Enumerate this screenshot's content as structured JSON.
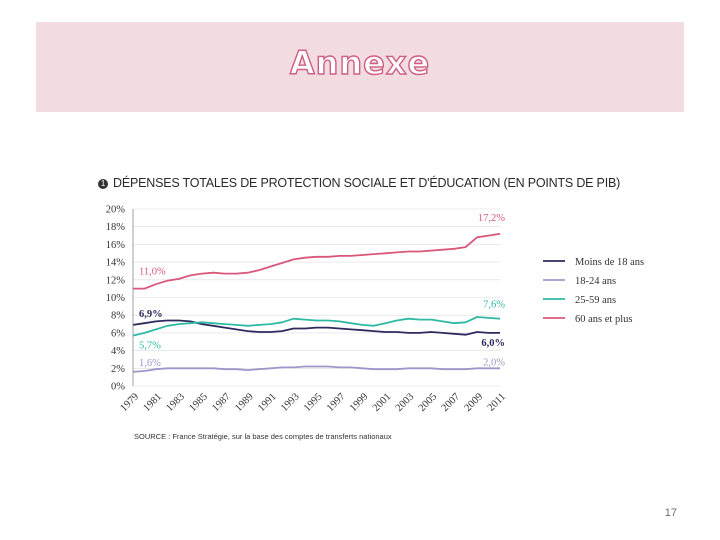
{
  "slide": {
    "title": "Annexe",
    "page_number": "17",
    "source": "SOURCE : France Stratégie, sur la base des comptes de transferts nationaux"
  },
  "chart_data": {
    "type": "line",
    "number": "1",
    "title": "DÉPENSES TOTALES DE PROTECTION SOCIALE ET D'ÉDUCATION (EN POINTS DE PIB)",
    "ylim": [
      0,
      20
    ],
    "y_ticks": [
      "0%",
      "2%",
      "4%",
      "6%",
      "8%",
      "10%",
      "12%",
      "14%",
      "16%",
      "18%",
      "20%"
    ],
    "x_ticks": [
      "1979",
      "1981",
      "1983",
      "1985",
      "1987",
      "1989",
      "1991",
      "1993",
      "1995",
      "1997",
      "1999",
      "2001",
      "2003",
      "2005",
      "2007",
      "2009",
      "2011"
    ],
    "x": [
      1979,
      1980,
      1981,
      1982,
      1983,
      1984,
      1985,
      1986,
      1987,
      1988,
      1989,
      1990,
      1991,
      1992,
      1993,
      1994,
      1995,
      1996,
      1997,
      1998,
      1999,
      2000,
      2001,
      2002,
      2003,
      2004,
      2005,
      2006,
      2007,
      2008,
      2009,
      2010,
      2011
    ],
    "series": [
      {
        "name": "Moins de 18 ans",
        "color": "#2e2a5e",
        "start_label": "6,9%",
        "end_label": "6,0%",
        "values": [
          6.9,
          7.1,
          7.3,
          7.4,
          7.4,
          7.3,
          7.0,
          6.8,
          6.6,
          6.4,
          6.2,
          6.1,
          6.1,
          6.2,
          6.5,
          6.5,
          6.6,
          6.6,
          6.5,
          6.4,
          6.3,
          6.2,
          6.1,
          6.1,
          6.0,
          6.0,
          6.1,
          6.0,
          5.9,
          5.8,
          6.1,
          6.0,
          6.0
        ]
      },
      {
        "name": "18-24 ans",
        "color": "#9d97c9",
        "start_label": "1,6%",
        "end_label": "2,0%",
        "values": [
          1.6,
          1.7,
          1.9,
          2.0,
          2.0,
          2.0,
          2.0,
          2.0,
          1.9,
          1.9,
          1.8,
          1.9,
          2.0,
          2.1,
          2.1,
          2.2,
          2.2,
          2.2,
          2.1,
          2.1,
          2.0,
          1.9,
          1.9,
          1.9,
          2.0,
          2.0,
          2.0,
          1.9,
          1.9,
          1.9,
          2.0,
          2.0,
          2.0
        ]
      },
      {
        "name": "25-59 ans",
        "color": "#2fb9a4",
        "start_label": "5,7%",
        "end_label": "7,6%",
        "values": [
          5.7,
          6.0,
          6.4,
          6.8,
          7.0,
          7.1,
          7.2,
          7.1,
          7.0,
          6.9,
          6.8,
          6.9,
          7.0,
          7.2,
          7.6,
          7.5,
          7.4,
          7.4,
          7.3,
          7.1,
          6.9,
          6.8,
          7.1,
          7.4,
          7.6,
          7.5,
          7.5,
          7.3,
          7.1,
          7.2,
          7.8,
          7.7,
          7.6
        ]
      },
      {
        "name": "60 ans et plus",
        "color": "#d9577a",
        "start_label": "11,0%",
        "end_label": "17,2%",
        "values": [
          11.0,
          11.0,
          11.5,
          11.9,
          12.1,
          12.5,
          12.7,
          12.8,
          12.7,
          12.7,
          12.8,
          13.1,
          13.5,
          13.9,
          14.3,
          14.5,
          14.6,
          14.6,
          14.7,
          14.7,
          14.8,
          14.9,
          15.0,
          15.1,
          15.2,
          15.2,
          15.3,
          15.4,
          15.5,
          15.7,
          16.8,
          17.0,
          17.2
        ]
      }
    ]
  }
}
